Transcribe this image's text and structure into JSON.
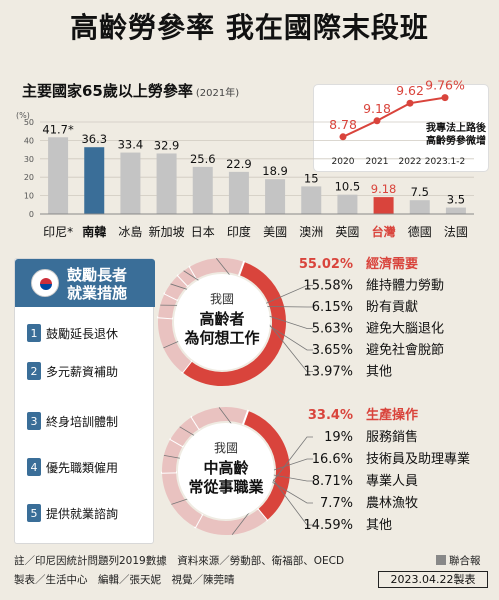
{
  "header": {
    "title": "高齡勞參率  我在國際末段班"
  },
  "bar_chart_title": "主要國家65歲以上勞參率",
  "bar_chart_year": "(2021年)",
  "bar_chart_unit": "(%)",
  "inset_note": "我專法上路後\n高齡勞參微增",
  "panel": {
    "title_line1": "鼓勵長者",
    "title_line2": "就業措施",
    "items": [
      {
        "num": "1",
        "label": "鼓勵延長退休"
      },
      {
        "num": "2",
        "label": "多元薪資補助"
      },
      {
        "num": "3",
        "label": "終身培訓體制"
      },
      {
        "num": "4",
        "label": "優先職類僱用"
      },
      {
        "num": "5",
        "label": "提供就業諮詢"
      }
    ]
  },
  "footer": {
    "note": "註／印尼因統計問題列2019數據　資料來源／勞動部、衛福部、OECD",
    "credits": "製表／生活中心　編輯／張天妮　視覺／陳莞晴",
    "brand": "聯合報",
    "date": "2023.04.22製表"
  },
  "colors": {
    "bar_default": "#c4c4c4",
    "bar_korea": "#3a6e98",
    "bar_taiwan": "#d9443c",
    "donut_red": "#d9443c",
    "donut_light": "#e9c2c0",
    "accent_text": "#d9443c"
  },
  "chart_data": [
    {
      "type": "bar",
      "title": "主要國家65歲以上勞參率",
      "categories": [
        "印尼*",
        "南韓",
        "冰島",
        "新加坡",
        "日本",
        "印度",
        "美國",
        "澳洲",
        "英國",
        "台灣",
        "德國",
        "法國"
      ],
      "values": [
        41.7,
        36.3,
        33.4,
        32.9,
        25.6,
        22.9,
        18.9,
        15,
        10.5,
        9.18,
        7.5,
        3.5
      ],
      "value_labels": [
        "41.7*",
        "36.3",
        "33.4",
        "32.9",
        "25.6",
        "22.9",
        "18.9",
        "15",
        "10.5",
        "9.18",
        "7.5",
        "3.5"
      ],
      "highlight": {
        "南韓": "korea",
        "台灣": "taiwan"
      },
      "yticks": [
        0,
        10,
        20,
        30,
        40,
        50
      ],
      "ylim": [
        0,
        50
      ]
    },
    {
      "type": "line",
      "x": [
        "2020",
        "2021",
        "2022",
        "2023.1-2"
      ],
      "values": [
        8.78,
        9.18,
        9.62,
        9.76
      ],
      "value_labels": [
        "8.78",
        "9.18",
        "9.62",
        "9.76%"
      ],
      "ylim": [
        8.5,
        10
      ]
    },
    {
      "type": "pie",
      "center_line1": "我國",
      "center_line2": "高齡者",
      "center_line3": "為何想工作",
      "slices": [
        {
          "label": "經濟需要",
          "value": 55.02,
          "value_label": "55.02%",
          "group": "main"
        },
        {
          "label": "維持體力勞動",
          "value": 15.58,
          "value_label": "15.58%"
        },
        {
          "label": "盼有貢獻",
          "value": 6.15,
          "value_label": "6.15%"
        },
        {
          "label": "避免大腦退化",
          "value": 5.63,
          "value_label": "5.63%"
        },
        {
          "label": "避免社會脫節",
          "value": 3.65,
          "value_label": "3.65%"
        },
        {
          "label": "其他",
          "value": 13.97,
          "value_label": "13.97%"
        }
      ]
    },
    {
      "type": "pie",
      "center_line1": "我國",
      "center_line2": "中高齡",
      "center_line3": "常從事職業",
      "slices": [
        {
          "label": "生產操作",
          "value": 33.4,
          "value_label": "33.4%",
          "group": "main"
        },
        {
          "label": "服務銷售",
          "value": 19,
          "value_label": "19%"
        },
        {
          "label": "技術員及助理專業",
          "value": 16.6,
          "value_label": "16.6%"
        },
        {
          "label": "專業人員",
          "value": 8.71,
          "value_label": "8.71%"
        },
        {
          "label": "農林漁牧",
          "value": 7.7,
          "value_label": "7.7%"
        },
        {
          "label": "其他",
          "value": 14.59,
          "value_label": "14.59%"
        }
      ]
    }
  ]
}
